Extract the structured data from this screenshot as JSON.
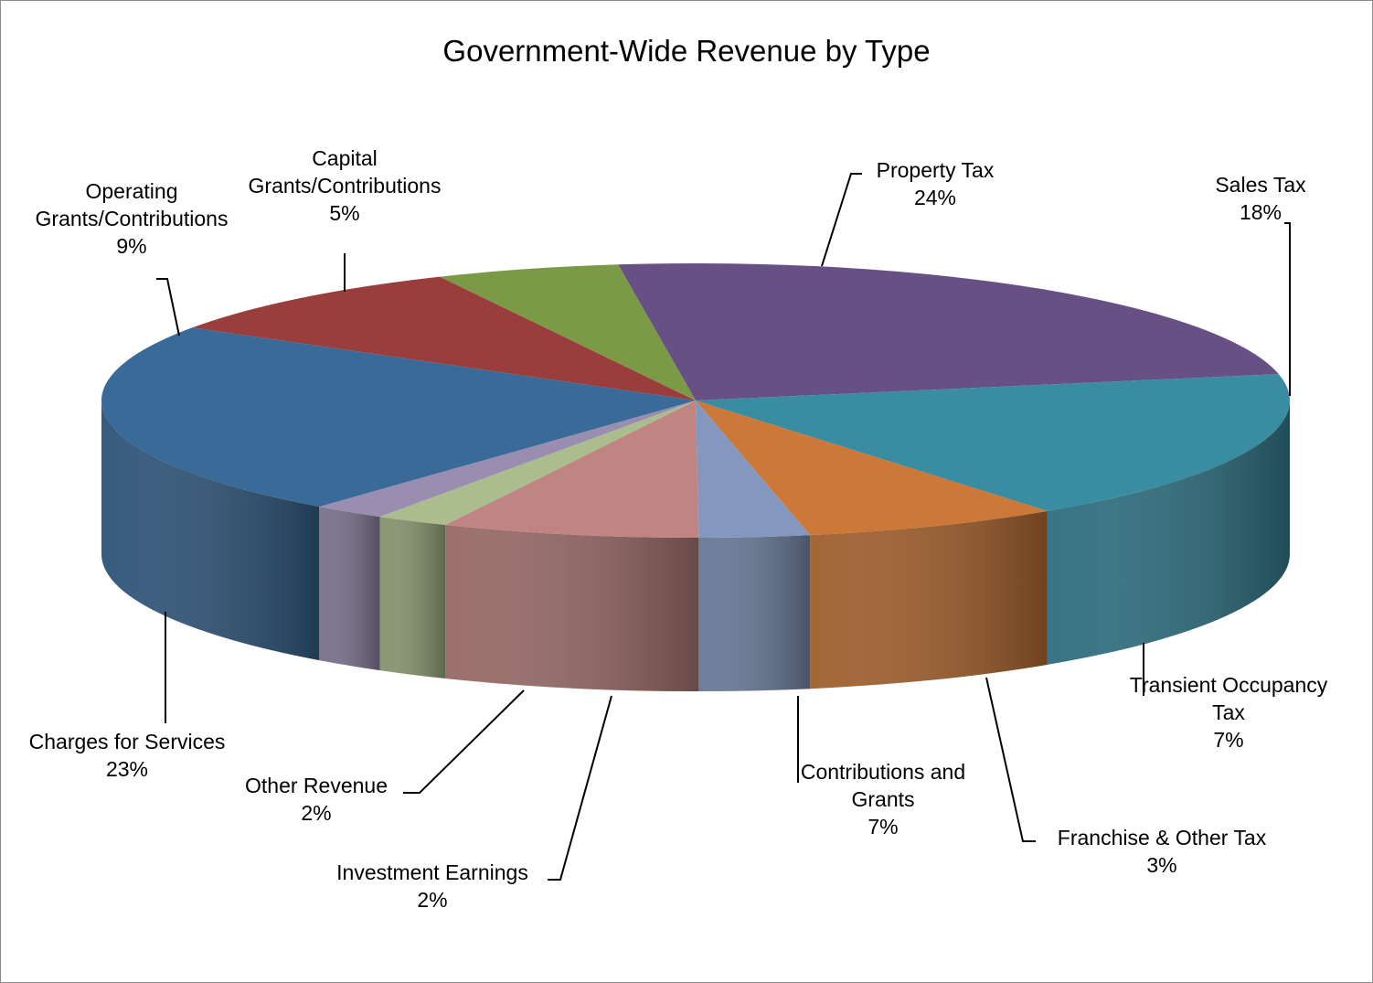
{
  "chart_data": {
    "type": "pie",
    "title": "Government-Wide Revenue by Type",
    "legend": "none",
    "slices": [
      {
        "label": [
          "Property Tax"
        ],
        "pct_label": "24%",
        "value": 24,
        "color": "#675184"
      },
      {
        "label": [
          "Sales Tax"
        ],
        "pct_label": "18%",
        "value": 18,
        "color": "#3A8CA1"
      },
      {
        "label": [
          "Transient Occupancy",
          "Tax"
        ],
        "pct_label": "7%",
        "value": 7,
        "color": "#CC7838"
      },
      {
        "label": [
          "Franchise & Other Tax"
        ],
        "pct_label": "3%",
        "value": 3,
        "color": "#8498BF"
      },
      {
        "label": [
          "Contributions and",
          "Grants"
        ],
        "pct_label": "7%",
        "value": 7,
        "color": "#C08583"
      },
      {
        "label": [
          "Investment Earnings"
        ],
        "pct_label": "2%",
        "value": 2,
        "color": "#ABBD8C"
      },
      {
        "label": [
          "Other Revenue"
        ],
        "pct_label": "2%",
        "value": 2,
        "color": "#9A8EB0"
      },
      {
        "label": [
          "Charges for Services"
        ],
        "pct_label": "23%",
        "value": 23,
        "color": "#3A6A98"
      },
      {
        "label": [
          "Operating",
          "Grants/Contributions"
        ],
        "pct_label": "9%",
        "value": 9,
        "color": "#9A3D3D"
      },
      {
        "label": [
          "Capital",
          "Grants/Contributions"
        ],
        "pct_label": "5%",
        "value": 5,
        "color": "#7A9A45"
      }
    ]
  }
}
